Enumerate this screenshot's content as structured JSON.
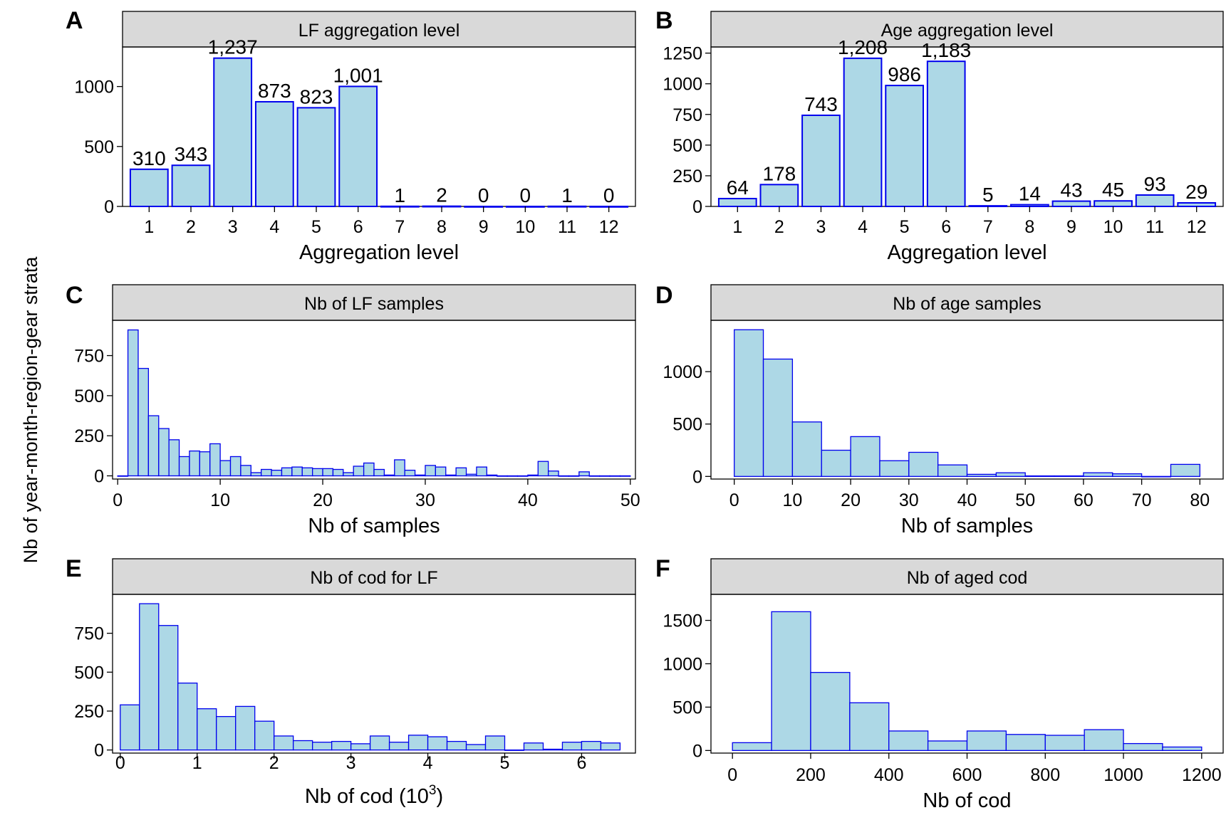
{
  "figure": {
    "ylabel": "Nb of year-month-region-gear strata",
    "colors": {
      "bar_fill": "#add8e6",
      "bar_stroke": "#0000ee",
      "strip_fill": "#d9d9d9"
    }
  },
  "chart_data": [
    {
      "id": "A",
      "letter": "A",
      "type": "bar",
      "title": "LF aggregation level",
      "xlabel": "Aggregation level",
      "categories": [
        "1",
        "2",
        "3",
        "4",
        "5",
        "6",
        "7",
        "8",
        "9",
        "10",
        "11",
        "12"
      ],
      "values": [
        310,
        343,
        1237,
        873,
        823,
        1001,
        1,
        2,
        0,
        0,
        1,
        0
      ],
      "data_labels": [
        "310",
        "343",
        "1,237",
        "873",
        "823",
        "1,001",
        "1",
        "2",
        "0",
        "0",
        "1",
        "0"
      ],
      "ylim": [
        0,
        1330
      ],
      "yticks": [
        0,
        500,
        1000
      ],
      "ytick_labels": [
        "0",
        "500",
        "1000"
      ]
    },
    {
      "id": "B",
      "letter": "B",
      "type": "bar",
      "title": "Age aggregation level",
      "xlabel": "Aggregation level",
      "categories": [
        "1",
        "2",
        "3",
        "4",
        "5",
        "6",
        "7",
        "8",
        "9",
        "10",
        "11",
        "12"
      ],
      "values": [
        64,
        178,
        743,
        1208,
        986,
        1183,
        5,
        14,
        43,
        45,
        93,
        29
      ],
      "data_labels": [
        "64",
        "178",
        "743",
        "1,208",
        "986",
        "1,183",
        "5",
        "14",
        "43",
        "45",
        "93",
        "29"
      ],
      "ylim": [
        0,
        1300
      ],
      "yticks": [
        0,
        250,
        500,
        750,
        1000,
        1250
      ],
      "ytick_labels": [
        "0",
        "250",
        "500",
        "750",
        "1000",
        "1250"
      ]
    },
    {
      "id": "C",
      "letter": "C",
      "type": "histogram",
      "title": "Nb of LF samples",
      "xlabel": "Nb of samples",
      "xlim": [
        -0.5,
        50.5
      ],
      "ylim": [
        -20,
        970
      ],
      "xticks": [
        0,
        10,
        20,
        30,
        40,
        50
      ],
      "xtick_labels": [
        "0",
        "10",
        "20",
        "30",
        "40",
        "50"
      ],
      "yticks": [
        0,
        250,
        500,
        750
      ],
      "ytick_labels": [
        "0",
        "250",
        "500",
        "750"
      ],
      "bin_width": 1,
      "bin_start": 0,
      "values": [
        0,
        910,
        670,
        375,
        295,
        225,
        120,
        155,
        150,
        200,
        95,
        120,
        65,
        20,
        40,
        35,
        50,
        55,
        50,
        45,
        45,
        40,
        20,
        60,
        80,
        40,
        5,
        100,
        35,
        5,
        65,
        55,
        5,
        50,
        10,
        55,
        5,
        0,
        0,
        0,
        5,
        90,
        30,
        0,
        0,
        25,
        0,
        0,
        0,
        0
      ]
    },
    {
      "id": "D",
      "letter": "D",
      "type": "histogram",
      "title": "Nb of age samples",
      "xlabel": "Nb of samples",
      "xlim": [
        -4,
        84
      ],
      "ylim": [
        -25,
        1490
      ],
      "xticks": [
        0,
        10,
        20,
        30,
        40,
        50,
        60,
        70,
        80
      ],
      "xtick_labels": [
        "0",
        "10",
        "20",
        "30",
        "40",
        "50",
        "60",
        "70",
        "80"
      ],
      "yticks": [
        0,
        500,
        1000
      ],
      "ytick_labels": [
        "0",
        "500",
        "1000"
      ],
      "bin_width": 5,
      "bin_start": 0,
      "values": [
        1400,
        1120,
        520,
        250,
        380,
        150,
        230,
        110,
        20,
        35,
        5,
        5,
        35,
        25,
        0,
        115
      ]
    },
    {
      "id": "E",
      "letter": "E",
      "type": "histogram",
      "title": "Nb of cod for LF",
      "xlabel": "Nb of cod (10",
      "xlabel_sup": "3",
      "xlabel_end": ")",
      "xlim": [
        -0.1,
        6.7
      ],
      "ylim": [
        -20,
        1000
      ],
      "xticks": [
        0,
        1,
        2,
        3,
        4,
        5,
        6
      ],
      "xtick_labels": [
        "0",
        "1",
        "2",
        "3",
        "4",
        "5",
        "6"
      ],
      "yticks": [
        0,
        250,
        500,
        750
      ],
      "ytick_labels": [
        "0",
        "250",
        "500",
        "750"
      ],
      "bin_width": 0.25,
      "bin_start": 0,
      "values": [
        290,
        940,
        800,
        430,
        265,
        215,
        280,
        185,
        90,
        60,
        50,
        55,
        40,
        90,
        50,
        95,
        85,
        55,
        35,
        90,
        0,
        45,
        5,
        50,
        55,
        45
      ]
    },
    {
      "id": "F",
      "letter": "F",
      "type": "histogram",
      "title": "Nb of aged cod",
      "xlabel": "Nb of cod",
      "xlim": [
        -55,
        1255
      ],
      "ylim": [
        -30,
        1800
      ],
      "xticks": [
        0,
        200,
        400,
        600,
        800,
        1000,
        1200
      ],
      "xtick_labels": [
        "0",
        "200",
        "400",
        "600",
        "800",
        "1000",
        "1200"
      ],
      "yticks": [
        0,
        500,
        1000,
        1500
      ],
      "ytick_labels": [
        "0",
        "500",
        "1000",
        "1500"
      ],
      "bin_width": 100,
      "bin_start": 0,
      "values": [
        90,
        1600,
        900,
        550,
        225,
        110,
        225,
        185,
        175,
        240,
        80,
        40
      ]
    }
  ]
}
